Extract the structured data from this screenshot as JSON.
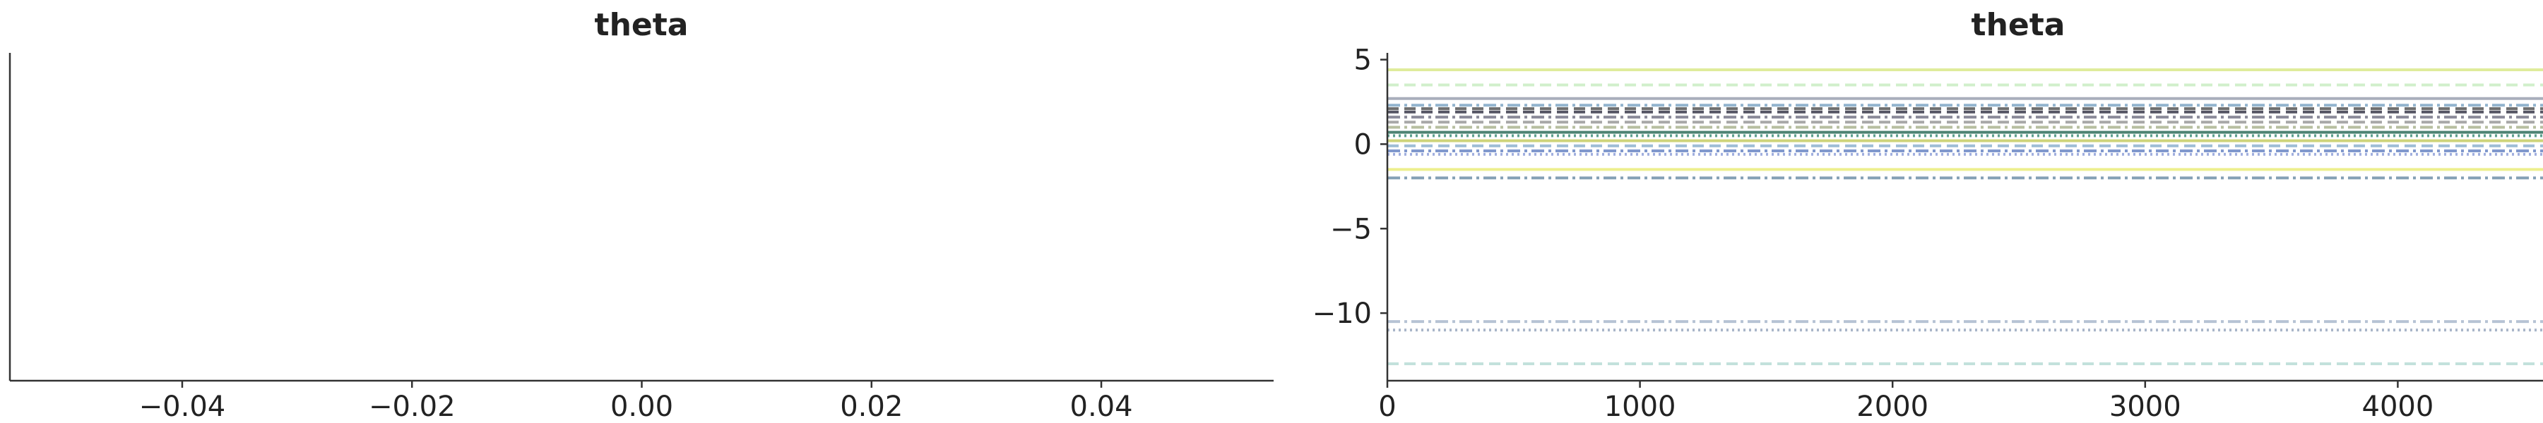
{
  "chart_data": [
    {
      "type": "line",
      "title": "theta",
      "xlabel": "",
      "ylabel": "",
      "xlim": [
        -0.055,
        0.055
      ],
      "xticks": [
        "−0.04",
        "−0.02",
        "0.00",
        "0.02",
        "0.04"
      ],
      "xtick_values": [
        -0.04,
        -0.02,
        0.0,
        0.02,
        0.04
      ],
      "series": []
    },
    {
      "type": "line",
      "title": "theta",
      "xlabel": "",
      "ylabel": "",
      "xlim": [
        0,
        5000
      ],
      "ylim": [
        -14,
        5.4
      ],
      "xticks": [
        "0",
        "1000",
        "2000",
        "3000",
        "4000"
      ],
      "xtick_values": [
        0,
        1000,
        2000,
        3000,
        4000
      ],
      "yticks": [
        "5",
        "0",
        "−5",
        "−10"
      ],
      "ytick_values": [
        5,
        0,
        -5,
        -10
      ],
      "grid": false,
      "series": [
        {
          "values": [
            4.4
          ],
          "color": "#d9e98a",
          "style": "solid"
        },
        {
          "values": [
            3.5
          ],
          "color": "#c9ecc2",
          "style": "dashed"
        },
        {
          "values": [
            2.7
          ],
          "color": "#9aa0b0",
          "style": "solid"
        },
        {
          "values": [
            2.3
          ],
          "color": "#7fa7c4",
          "style": "dashdot"
        },
        {
          "values": [
            2.1
          ],
          "color": "#555555",
          "style": "dashed"
        },
        {
          "values": [
            1.9
          ],
          "color": "#3a3a4a",
          "style": "dashed"
        },
        {
          "values": [
            1.6
          ],
          "color": "#777788",
          "style": "dashdot"
        },
        {
          "values": [
            1.3
          ],
          "color": "#999999",
          "style": "dashed"
        },
        {
          "values": [
            1.0
          ],
          "color": "#aab48f",
          "style": "dashdot"
        },
        {
          "values": [
            0.7
          ],
          "color": "#2e6d5a",
          "style": "solid"
        },
        {
          "values": [
            0.5
          ],
          "color": "#3f8f7a",
          "style": "dotted"
        },
        {
          "values": [
            0.2
          ],
          "color": "#c5cd63",
          "style": "solid"
        },
        {
          "values": [
            -0.1
          ],
          "color": "#8fb3cf",
          "style": "dashed"
        },
        {
          "values": [
            -0.4
          ],
          "color": "#6a86c4",
          "style": "dashdot"
        },
        {
          "values": [
            -0.6
          ],
          "color": "#8fa0d8",
          "style": "dotted"
        },
        {
          "values": [
            -1.5
          ],
          "color": "#eaec7a",
          "style": "solid"
        },
        {
          "values": [
            -2.0
          ],
          "color": "#6f8fa8",
          "style": "dashdot"
        },
        {
          "values": [
            -10.5
          ],
          "color": "#a9b8cc",
          "style": "dashdot"
        },
        {
          "values": [
            -11.0
          ],
          "color": "#9aa8c0",
          "style": "dotted"
        },
        {
          "values": [
            -13.0
          ],
          "color": "#b8dcd6",
          "style": "dashed"
        }
      ]
    }
  ]
}
